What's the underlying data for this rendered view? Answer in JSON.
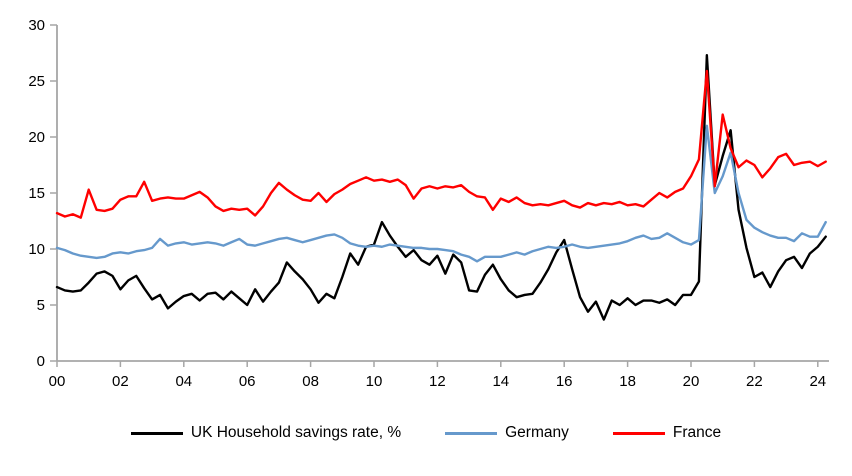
{
  "chart_data": {
    "type": "line",
    "title": "",
    "x_frequency": "quarterly",
    "x_start_label": "2000 Q1",
    "x_end_label": "2024 Q2",
    "points_per_year": 4,
    "grid": false,
    "legend_position": "bottom",
    "x_axis": {
      "tick_labels": [
        "00",
        "02",
        "04",
        "06",
        "08",
        "10",
        "12",
        "14",
        "16",
        "18",
        "20",
        "22",
        "24"
      ],
      "tick_years": [
        2000,
        2002,
        2004,
        2006,
        2008,
        2010,
        2012,
        2014,
        2016,
        2018,
        2020,
        2022,
        2024
      ]
    },
    "y_axis": {
      "min": 0,
      "max": 30,
      "tick_interval": 5,
      "ticks": [
        0,
        5,
        10,
        15,
        20,
        25,
        30
      ]
    },
    "series": [
      {
        "name": "UK Household savings rate, %",
        "color": "#000000",
        "values": [
          6.6,
          6.3,
          6.2,
          6.3,
          7.0,
          7.8,
          8.0,
          7.6,
          6.4,
          7.2,
          7.6,
          6.5,
          5.5,
          5.9,
          4.7,
          5.3,
          5.8,
          6.0,
          5.4,
          6.0,
          6.1,
          5.5,
          6.2,
          5.6,
          5.0,
          6.4,
          5.3,
          6.2,
          7.0,
          8.8,
          8.0,
          7.3,
          6.4,
          5.2,
          6.0,
          5.6,
          7.5,
          9.6,
          8.6,
          10.2,
          10.4,
          12.4,
          11.2,
          10.2,
          9.3,
          9.9,
          9.0,
          8.6,
          9.4,
          7.8,
          9.5,
          8.8,
          6.3,
          6.2,
          7.7,
          8.6,
          7.3,
          6.3,
          5.7,
          5.9,
          6.0,
          7.0,
          8.2,
          9.7,
          10.8,
          8.2,
          5.7,
          4.4,
          5.3,
          3.7,
          5.4,
          5.0,
          5.6,
          5.0,
          5.4,
          5.4,
          5.2,
          5.5,
          5.0,
          5.9,
          5.9,
          7.1,
          27.3,
          15.7,
          18.3,
          20.6,
          13.5,
          10.1,
          7.5,
          7.9,
          6.6,
          8.0,
          9.0,
          9.3,
          8.3,
          9.6,
          10.2,
          11.1
        ]
      },
      {
        "name": "Germany",
        "color": "#6699CC",
        "values": [
          10.1,
          9.9,
          9.6,
          9.4,
          9.3,
          9.2,
          9.3,
          9.6,
          9.7,
          9.6,
          9.8,
          9.9,
          10.1,
          10.9,
          10.3,
          10.5,
          10.6,
          10.4,
          10.5,
          10.6,
          10.5,
          10.3,
          10.6,
          10.9,
          10.4,
          10.3,
          10.5,
          10.7,
          10.9,
          11.0,
          10.8,
          10.6,
          10.8,
          11.0,
          11.2,
          11.3,
          11.0,
          10.5,
          10.3,
          10.2,
          10.3,
          10.2,
          10.4,
          10.3,
          10.2,
          10.1,
          10.1,
          10.0,
          10.0,
          9.9,
          9.8,
          9.5,
          9.3,
          8.9,
          9.3,
          9.3,
          9.3,
          9.5,
          9.7,
          9.5,
          9.8,
          10.0,
          10.2,
          10.1,
          10.2,
          10.4,
          10.2,
          10.1,
          10.2,
          10.3,
          10.4,
          10.5,
          10.7,
          11.0,
          11.2,
          10.9,
          11.0,
          11.4,
          11.0,
          10.6,
          10.4,
          10.8,
          21.0,
          15.0,
          16.5,
          18.6,
          15.0,
          12.6,
          11.9,
          11.5,
          11.2,
          11.0,
          11.0,
          10.7,
          11.4,
          11.1,
          11.1,
          12.4
        ]
      },
      {
        "name": "France",
        "color": "#FF0000",
        "values": [
          13.2,
          12.9,
          13.1,
          12.8,
          15.3,
          13.5,
          13.4,
          13.6,
          14.4,
          14.7,
          14.7,
          16.0,
          14.3,
          14.5,
          14.6,
          14.5,
          14.5,
          14.8,
          15.1,
          14.6,
          13.8,
          13.4,
          13.6,
          13.5,
          13.6,
          13.0,
          13.8,
          15.0,
          15.9,
          15.3,
          14.8,
          14.4,
          14.3,
          15.0,
          14.2,
          14.9,
          15.3,
          15.8,
          16.1,
          16.4,
          16.1,
          16.2,
          16.0,
          16.2,
          15.7,
          14.5,
          15.4,
          15.6,
          15.4,
          15.6,
          15.5,
          15.7,
          15.1,
          14.7,
          14.6,
          13.5,
          14.5,
          14.2,
          14.6,
          14.1,
          13.9,
          14.0,
          13.9,
          14.1,
          14.3,
          13.9,
          13.7,
          14.1,
          13.9,
          14.1,
          14.0,
          14.2,
          13.9,
          14.0,
          13.8,
          14.4,
          15.0,
          14.6,
          15.1,
          15.4,
          16.5,
          18.0,
          25.9,
          15.6,
          22.0,
          19.0,
          17.3,
          17.9,
          17.5,
          16.4,
          17.2,
          18.2,
          18.5,
          17.5,
          17.7,
          17.8,
          17.4,
          17.8
        ]
      }
    ]
  },
  "colors": {
    "axis": "#A6A6A6",
    "tick_text": "#000000",
    "background": "#FFFFFF"
  }
}
